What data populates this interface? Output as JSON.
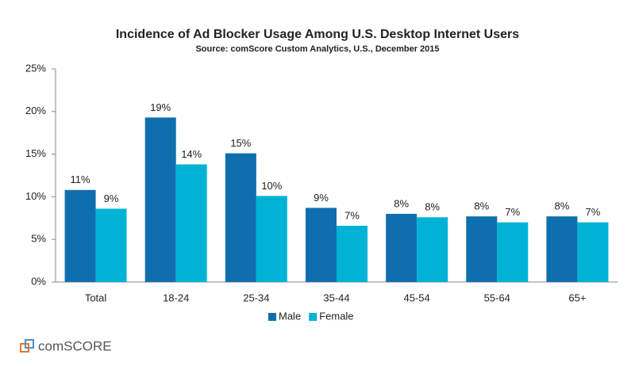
{
  "chart_data": {
    "type": "bar",
    "title": "Incidence of Ad Blocker Usage Among U.S. Desktop Internet Users",
    "subtitle": "Source: comScore Custom Analytics, U.S., December 2015",
    "categories": [
      "Total",
      "18-24",
      "25-34",
      "35-44",
      "45-54",
      "55-64",
      "65+"
    ],
    "series": [
      {
        "name": "Male",
        "color": "#0f6fae",
        "values": [
          10.8,
          19.3,
          15.1,
          8.7,
          8.0,
          7.7,
          7.7
        ],
        "value_labels": [
          "11%",
          "19%",
          "15%",
          "9%",
          "8%",
          "8%",
          "8%"
        ]
      },
      {
        "name": "Female",
        "color": "#00b3d6",
        "values": [
          8.6,
          13.8,
          10.1,
          6.6,
          7.6,
          7.0,
          7.0
        ],
        "value_labels": [
          "9%",
          "14%",
          "10%",
          "7%",
          "8%",
          "7%",
          "7%"
        ]
      }
    ],
    "ylim": [
      0,
      25
    ],
    "yticks": [
      {
        "value": 0,
        "label": "0%"
      },
      {
        "value": 5,
        "label": "5%"
      },
      {
        "value": 10,
        "label": "10%"
      },
      {
        "value": 15,
        "label": "15%"
      },
      {
        "value": 20,
        "label": "20%"
      },
      {
        "value": 25,
        "label": "25%"
      }
    ],
    "grid": false,
    "legend": "bottom",
    "logo": "comSCORE"
  }
}
